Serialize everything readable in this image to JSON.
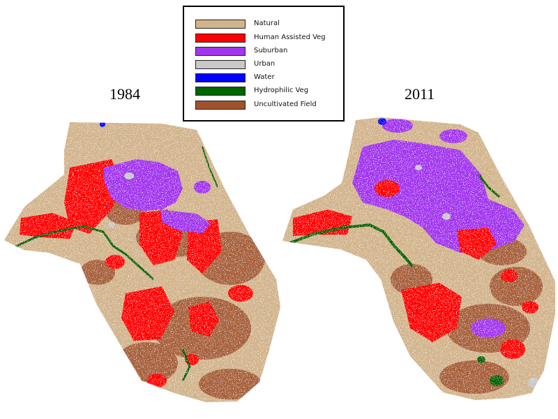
{
  "legend": {
    "items": [
      {
        "label": "Natural",
        "color": "#d2b48c"
      },
      {
        "label": "Human Assisted Veg",
        "color": "#ff0000"
      },
      {
        "label": "Suburban",
        "color": "#a335ee"
      },
      {
        "label": "Urban",
        "color": "#c8c8c8"
      },
      {
        "label": "Water",
        "color": "#0000ff"
      },
      {
        "label": "Hydrophilic Veg",
        "color": "#006400"
      },
      {
        "label": "Uncultivated Field",
        "color": "#a0522d"
      }
    ]
  },
  "maps": [
    {
      "year": "1984",
      "icon": "land-cover-map-1984"
    },
    {
      "year": "2011",
      "icon": "land-cover-map-2011"
    }
  ]
}
